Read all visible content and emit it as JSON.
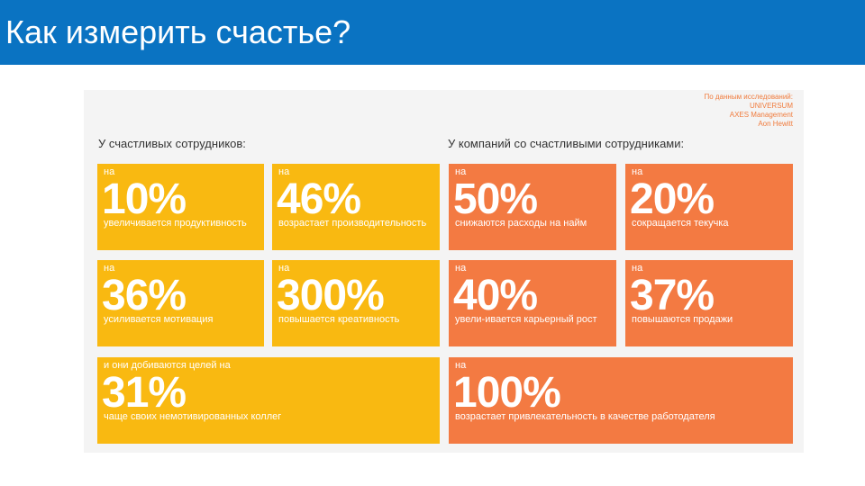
{
  "slide": {
    "title": "Как измерить счастье?"
  },
  "source": {
    "label": "По данным исследований:",
    "lines": [
      "UNIVERSUM",
      "AXES Management",
      "Aon Hewitt"
    ]
  },
  "left_section": {
    "heading": "У счастливых сотрудников:",
    "tiles": [
      {
        "pre": "на",
        "percent": "10%",
        "desc": "увеличивается продуктивность"
      },
      {
        "pre": "на",
        "percent": "46%",
        "desc": "возрастает производительность"
      },
      {
        "pre": "на",
        "percent": "36%",
        "desc": "усиливается мотивация"
      },
      {
        "pre": "на",
        "percent": "300%",
        "desc": "повышается креативность"
      },
      {
        "pre": "и они добиваются целей на",
        "percent": "31%",
        "desc": "чаще своих немотивированных коллег"
      }
    ]
  },
  "right_section": {
    "heading": "У компаний со счастливыми сотрудниками:",
    "tiles": [
      {
        "pre": "на",
        "percent": "50%",
        "desc": "снижаются расходы на найм"
      },
      {
        "pre": "на",
        "percent": "20%",
        "desc": "сокращается текучка"
      },
      {
        "pre": "на",
        "percent": "40%",
        "desc": "увели-ивается карьерный рост"
      },
      {
        "pre": "на",
        "percent": "37%",
        "desc": "повышаются продажи"
      },
      {
        "pre": "на",
        "percent": "100%",
        "desc": "возрастает привлекательность в качестве работодателя"
      }
    ]
  },
  "colors": {
    "title_bar": "#0a73c2",
    "yellow": "#f9b911",
    "orange": "#f37a42"
  }
}
